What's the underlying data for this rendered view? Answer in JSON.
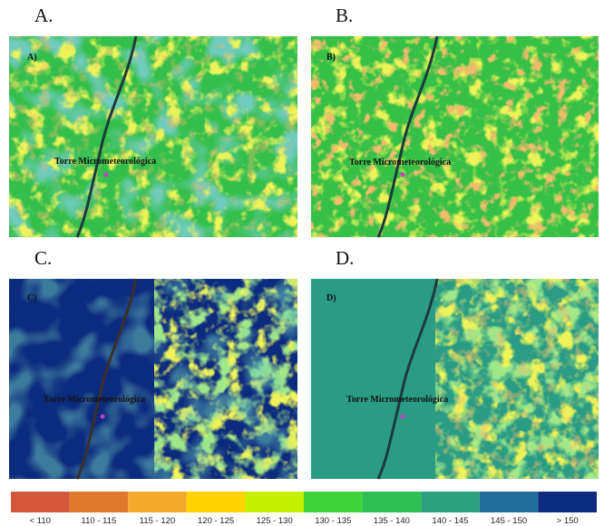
{
  "panels": [
    {
      "title": "A.",
      "tag": "A)",
      "annotation": "Torre Micrometeorológica"
    },
    {
      "title": "B.",
      "tag": "B)",
      "annotation": "Torre Micrometeorológica"
    },
    {
      "title": "C.",
      "tag": "C)",
      "annotation": "Torre Micrometeorológica"
    },
    {
      "title": "D.",
      "tag": "D)",
      "annotation": "Torre Micrometeorológica"
    }
  ],
  "legend": [
    {
      "label": "< 110",
      "color": "#d2573b"
    },
    {
      "label": "110 - 115",
      "color": "#e0782c"
    },
    {
      "label": "115 - 120",
      "color": "#f2a92c"
    },
    {
      "label": "120 - 125",
      "color": "#ffd200"
    },
    {
      "label": "125 - 130",
      "color": "#c6f000"
    },
    {
      "label": "130 - 135",
      "color": "#3ed33a"
    },
    {
      "label": "135 - 140",
      "color": "#2fbf55"
    },
    {
      "label": "140 - 145",
      "color": "#2aa07c"
    },
    {
      "label": "145 - 150",
      "color": "#236f9c"
    },
    {
      "label": "> 150",
      "color": "#0c2a7e"
    }
  ]
}
